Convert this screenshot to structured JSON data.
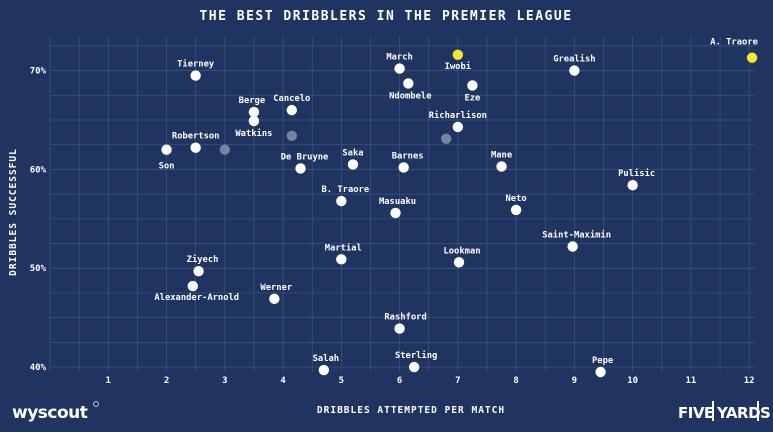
{
  "chart_data": {
    "type": "scatter",
    "title": "THE BEST DRIBBLERS IN THE PREMIER LEAGUE",
    "xlabel": "DRIBBLES ATTEMPTED PER MATCH",
    "ylabel": "DRIBBLES SUCCESSFUL",
    "xlim": [
      0,
      12.1
    ],
    "ylim": [
      39.5,
      73.5
    ],
    "x_ticks": [
      1,
      2,
      3,
      4,
      5,
      6,
      7,
      8,
      9,
      10,
      11,
      12
    ],
    "y_ticks": [
      40,
      50,
      60,
      70
    ],
    "y_tick_labels": [
      "40%",
      "50%",
      "60%",
      "70%"
    ],
    "grid": true,
    "colors": {
      "background": "#1f3461",
      "grid": "#3e5686",
      "point": "#ffffff",
      "highlight": "#f3e82f",
      "muted": "#75849f"
    },
    "points": [
      {
        "name": "A. Traore",
        "x": 12.05,
        "y": 71.3,
        "style": "highlight"
      },
      {
        "name": "Iwobi",
        "x": 7.0,
        "y": 71.6,
        "style": "highlight"
      },
      {
        "name": "March",
        "x": 6.0,
        "y": 70.2
      },
      {
        "name": "Grealish",
        "x": 9.0,
        "y": 70.0
      },
      {
        "name": "Tierney",
        "x": 2.5,
        "y": 69.5
      },
      {
        "name": "Ndombele",
        "x": 6.15,
        "y": 68.7
      },
      {
        "name": "Eze",
        "x": 7.25,
        "y": 68.5
      },
      {
        "name": "Berge",
        "x": 3.5,
        "y": 65.8
      },
      {
        "name": "Cancelo",
        "x": 4.15,
        "y": 66.0
      },
      {
        "name": "Watkins",
        "x": 3.5,
        "y": 64.9
      },
      {
        "name": "Richarlison",
        "x": 7.0,
        "y": 64.3
      },
      {
        "name": "",
        "x": 4.15,
        "y": 63.4,
        "style": "muted"
      },
      {
        "name": "",
        "x": 6.8,
        "y": 63.1,
        "style": "muted"
      },
      {
        "name": "Robertson",
        "x": 2.5,
        "y": 62.2
      },
      {
        "name": "Son",
        "x": 2.0,
        "y": 62.0
      },
      {
        "name": "",
        "x": 3.0,
        "y": 62.0,
        "style": "muted"
      },
      {
        "name": "De Bruyne",
        "x": 4.3,
        "y": 60.1
      },
      {
        "name": "Saka",
        "x": 5.2,
        "y": 60.5
      },
      {
        "name": "Barnes",
        "x": 6.07,
        "y": 60.2
      },
      {
        "name": "Mane",
        "x": 7.75,
        "y": 60.3
      },
      {
        "name": "Pulisic",
        "x": 10.0,
        "y": 58.4
      },
      {
        "name": "B. Traore",
        "x": 5.0,
        "y": 56.8
      },
      {
        "name": "Masuaku",
        "x": 5.93,
        "y": 55.6
      },
      {
        "name": "Neto",
        "x": 8.0,
        "y": 55.9
      },
      {
        "name": "Saint-Maximin",
        "x": 8.97,
        "y": 52.2
      },
      {
        "name": "Martial",
        "x": 5.0,
        "y": 50.9
      },
      {
        "name": "Lookman",
        "x": 7.02,
        "y": 50.6
      },
      {
        "name": "Ziyech",
        "x": 2.55,
        "y": 49.7
      },
      {
        "name": "Alexander-Arnold",
        "x": 2.45,
        "y": 48.2
      },
      {
        "name": "Werner",
        "x": 3.85,
        "y": 46.9
      },
      {
        "name": "Rashford",
        "x": 6.0,
        "y": 43.9
      },
      {
        "name": "Salah",
        "x": 4.7,
        "y": 39.7
      },
      {
        "name": "Sterling",
        "x": 6.25,
        "y": 40.0
      },
      {
        "name": "Pepe",
        "x": 9.45,
        "y": 39.5
      }
    ]
  },
  "branding": {
    "left_logo": "wyscout",
    "right_logo_left": "FIVE",
    "right_logo_right": "YARDS"
  }
}
